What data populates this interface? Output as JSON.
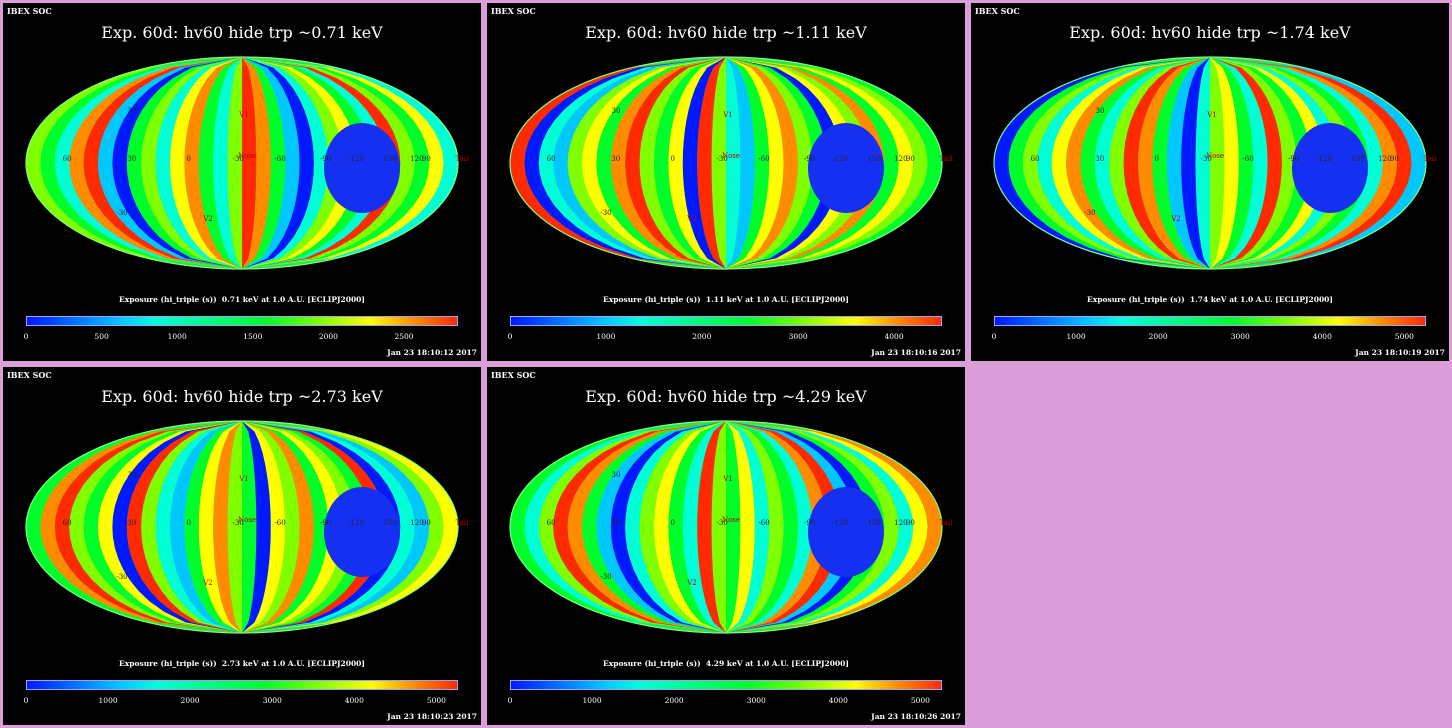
{
  "header_label": "IBEX SOC",
  "map_labels": {
    "v1": "V1",
    "v2": "V2",
    "nose": "Nose",
    "tail": "Tail",
    "lon": [
      "60",
      "30",
      "0",
      "-30",
      "-60",
      "-90",
      "-120",
      "150",
      "120",
      "90"
    ],
    "lat": [
      "30",
      "-30"
    ]
  },
  "colormap": [
    "#0019ff",
    "#00c8ff",
    "#00ffd5",
    "#00ff2a",
    "#7fff00",
    "#ffff00",
    "#ff8c00",
    "#ff2a00"
  ],
  "panels": [
    {
      "title": "Exp.   60d: hv60 hide trp ~0.71 keV",
      "caption": "Exposure (hi_triple (s))  0.71 keV at 1.0 A.U. [ECLIPJ2000]",
      "timestamp": "Jan 23 18:10:12 2017",
      "ticks": [
        {
          "label": "0",
          "f": 0
        },
        {
          "label": "500",
          "f": 0.175
        },
        {
          "label": "1000",
          "f": 0.35
        },
        {
          "label": "1500",
          "f": 0.525
        },
        {
          "label": "2000",
          "f": 0.7
        },
        {
          "label": "2500",
          "f": 0.875
        }
      ]
    },
    {
      "title": "Exp.   60d: hv60 hide trp ~1.11 keV",
      "caption": "Exposure (hi_triple (s))  1.11 keV at 1.0 A.U. [ECLIPJ2000]",
      "timestamp": "Jan 23 18:10:16 2017",
      "ticks": [
        {
          "label": "0",
          "f": 0
        },
        {
          "label": "1000",
          "f": 0.222
        },
        {
          "label": "2000",
          "f": 0.444
        },
        {
          "label": "3000",
          "f": 0.667
        },
        {
          "label": "4000",
          "f": 0.889
        }
      ]
    },
    {
      "title": "Exp.   60d: hv60 hide trp ~1.74 keV",
      "caption": "Exposure (hi_triple (s))  1.74 keV at 1.0 A.U. [ECLIPJ2000]",
      "timestamp": "Jan 23 18:10:19 2017",
      "ticks": [
        {
          "label": "0",
          "f": 0
        },
        {
          "label": "1000",
          "f": 0.19
        },
        {
          "label": "2000",
          "f": 0.38
        },
        {
          "label": "3000",
          "f": 0.57
        },
        {
          "label": "4000",
          "f": 0.76
        },
        {
          "label": "5000",
          "f": 0.95
        }
      ]
    },
    {
      "title": "Exp.   60d: hv60 hide trp ~2.73 keV",
      "caption": "Exposure (hi_triple (s))  2.73 keV at 1.0 A.U. [ECLIPJ2000]",
      "timestamp": "Jan 23 18:10:23 2017",
      "ticks": [
        {
          "label": "0",
          "f": 0
        },
        {
          "label": "1000",
          "f": 0.19
        },
        {
          "label": "2000",
          "f": 0.38
        },
        {
          "label": "3000",
          "f": 0.57
        },
        {
          "label": "4000",
          "f": 0.76
        },
        {
          "label": "5000",
          "f": 0.95
        }
      ]
    },
    {
      "title": "Exp.   60d: hv60 hide trp ~4.29 keV",
      "caption": "Exposure (hi_triple (s))  4.29 keV at 1.0 A.U. [ECLIPJ2000]",
      "timestamp": "Jan 23 18:10:26 2017",
      "ticks": [
        {
          "label": "0",
          "f": 0
        },
        {
          "label": "1000",
          "f": 0.19
        },
        {
          "label": "2000",
          "f": 0.38
        },
        {
          "label": "3000",
          "f": 0.57
        },
        {
          "label": "4000",
          "f": 0.76
        },
        {
          "label": "5000",
          "f": 0.95
        }
      ]
    }
  ]
}
